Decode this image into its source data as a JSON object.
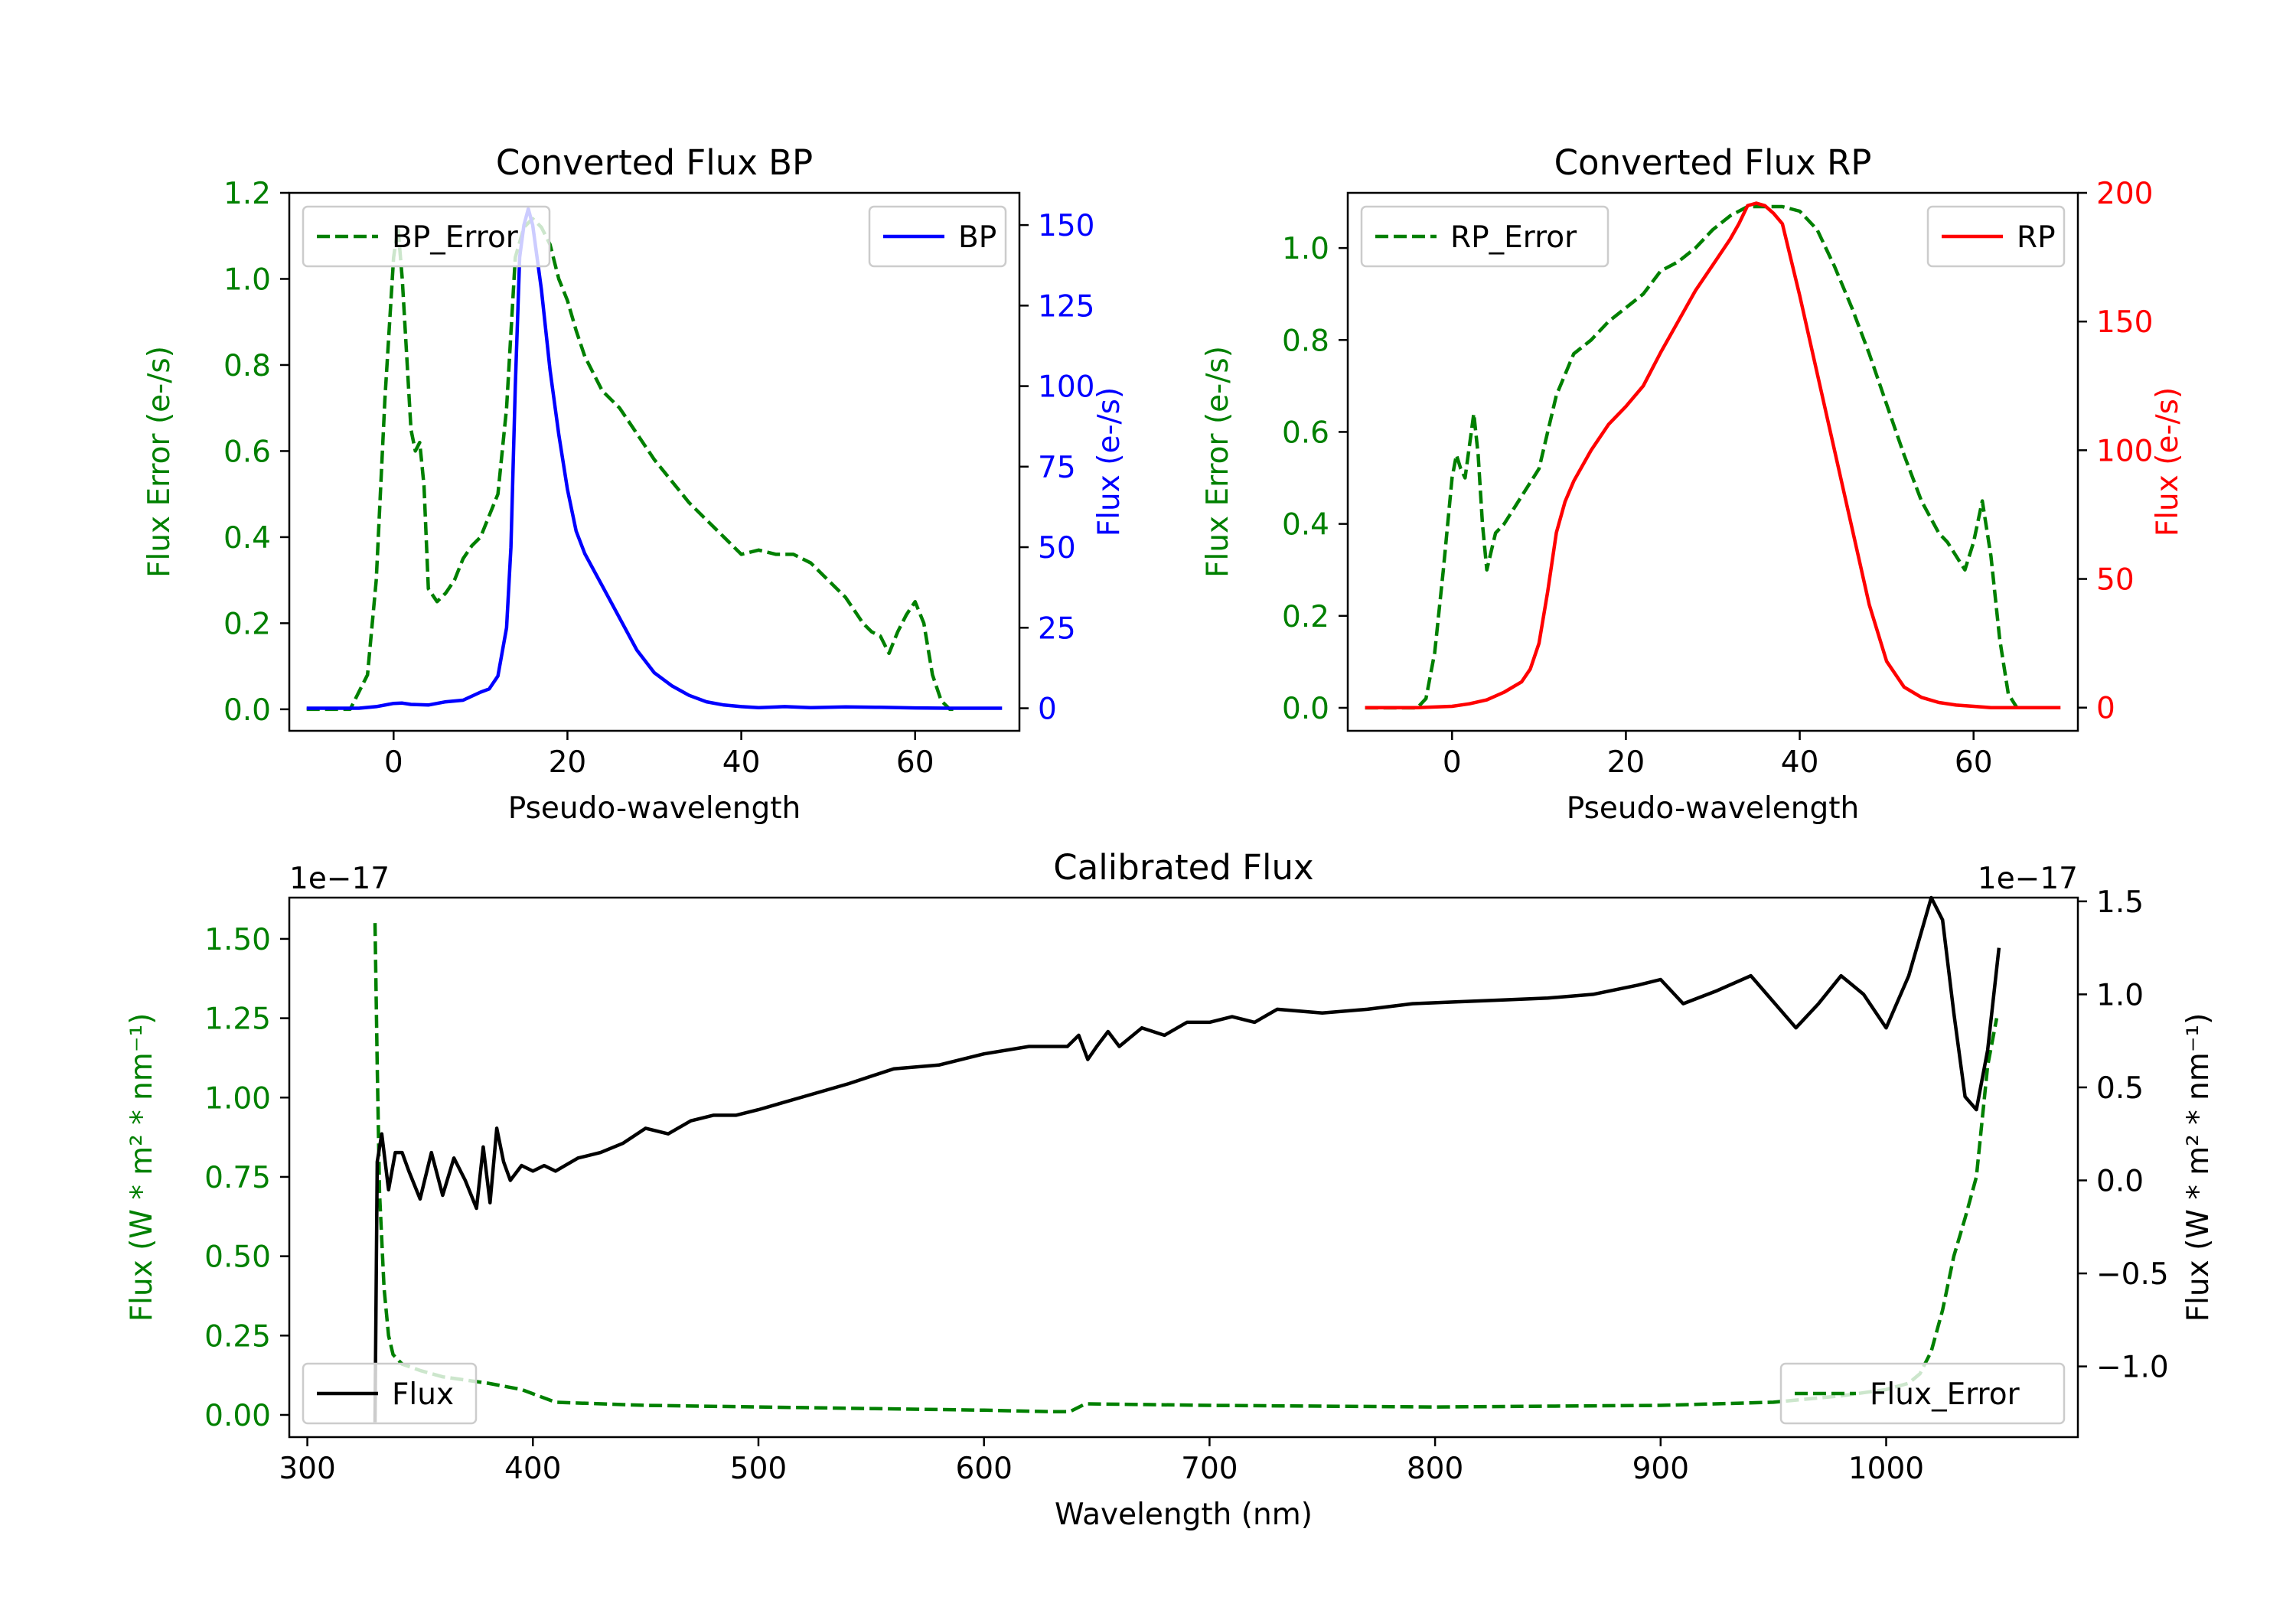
{
  "colors": {
    "green": "#008000",
    "blue": "#0000ff",
    "red": "#ff0000",
    "black": "#000000"
  },
  "chart_data": [
    {
      "type": "line",
      "title": "Converted Flux BP",
      "xlabel": "Pseudo-wavelength",
      "ylabel_left": "Flux Error (e-/s)",
      "ylabel_right": "Flux (e-/s)",
      "xlim": [
        -12.0,
        72.0
      ],
      "ylim_left": [
        -0.05,
        1.2
      ],
      "ylim_right": [
        -7.0,
        160.0
      ],
      "xticks": [
        0,
        20,
        40,
        60
      ],
      "yticks_left": [
        "0.0",
        "0.2",
        "0.4",
        "0.6",
        "0.8",
        "1.0",
        "1.2"
      ],
      "yticks_right": [
        "0",
        "25",
        "50",
        "75",
        "100",
        "125",
        "150"
      ],
      "legend_left": {
        "label": "BP_Error",
        "position": "upper-left"
      },
      "legend_right": {
        "label": "BP",
        "position": "upper-right"
      },
      "series": [
        {
          "name": "BP_Error",
          "axis": "left",
          "style": "dashed",
          "color": "#008000",
          "x": [
            -10,
            -5,
            -3,
            -2,
            -1,
            0,
            0.5,
            1,
            2,
            2.5,
            3,
            3.5,
            4,
            5,
            6,
            7,
            8,
            9,
            10,
            11,
            12,
            13,
            14,
            15,
            16,
            17,
            18,
            19,
            20,
            21,
            22,
            24,
            26,
            28,
            30,
            32,
            34,
            36,
            38,
            40,
            42,
            44,
            46,
            48,
            50,
            52,
            54,
            55,
            56,
            57,
            58,
            59,
            60,
            61,
            62,
            63,
            64,
            65
          ],
          "values": [
            0.0,
            0.0,
            0.08,
            0.3,
            0.72,
            1.05,
            1.12,
            1.0,
            0.65,
            0.6,
            0.62,
            0.52,
            0.28,
            0.25,
            0.27,
            0.3,
            0.35,
            0.38,
            0.4,
            0.45,
            0.5,
            0.7,
            1.05,
            1.12,
            1.14,
            1.12,
            1.08,
            1.0,
            0.95,
            0.88,
            0.82,
            0.74,
            0.7,
            0.64,
            0.58,
            0.53,
            0.48,
            0.44,
            0.4,
            0.36,
            0.37,
            0.36,
            0.36,
            0.34,
            0.3,
            0.26,
            0.2,
            0.18,
            0.17,
            0.13,
            0.18,
            0.22,
            0.25,
            0.2,
            0.08,
            0.02,
            0.0,
            0.0
          ]
        },
        {
          "name": "BP",
          "axis": "right",
          "style": "solid",
          "color": "#0000ff",
          "x": [
            -10,
            -4,
            -2,
            0,
            1,
            2,
            4,
            6,
            8,
            10,
            11,
            12,
            13,
            13.5,
            14,
            14.5,
            15,
            15.5,
            16,
            17,
            18,
            19,
            20,
            21,
            22,
            24,
            26,
            28,
            30,
            32,
            34,
            36,
            38,
            40,
            42,
            45,
            48,
            52,
            56,
            60,
            64,
            70
          ],
          "values": [
            0,
            0,
            0.5,
            1.5,
            1.6,
            1.2,
            1.0,
            2.0,
            2.5,
            5,
            6,
            10,
            25,
            50,
            100,
            140,
            150,
            155,
            150,
            130,
            105,
            85,
            68,
            55,
            48,
            38,
            28,
            18,
            11,
            7,
            4,
            2,
            1,
            0.5,
            0.2,
            0.5,
            0.2,
            0.4,
            0.3,
            0.1,
            0,
            0
          ]
        }
      ]
    },
    {
      "type": "line",
      "title": "Converted Flux RP",
      "xlabel": "Pseudo-wavelength",
      "ylabel_left": "Flux Error (e-/s)",
      "ylabel_right": "Flux (e-/s)",
      "xlim": [
        -12.0,
        72.0
      ],
      "ylim_left": [
        -0.05,
        1.12
      ],
      "ylim_right": [
        -9.0,
        200.0
      ],
      "xticks": [
        0,
        20,
        40,
        60
      ],
      "yticks_left": [
        "0.0",
        "0.2",
        "0.4",
        "0.6",
        "0.8",
        "1.0"
      ],
      "yticks_right": [
        "0",
        "50",
        "100",
        "150",
        "200"
      ],
      "legend_left": {
        "label": "RP_Error",
        "position": "upper-left"
      },
      "legend_right": {
        "label": "RP",
        "position": "upper-right"
      },
      "series": [
        {
          "name": "RP_Error",
          "axis": "left",
          "style": "dashed",
          "color": "#008000",
          "x": [
            -10,
            -4,
            -3,
            -2,
            -1,
            0,
            0.5,
            1,
            1.5,
            2,
            2.5,
            3,
            3.5,
            4,
            5,
            6,
            8,
            10,
            12,
            14,
            16,
            18,
            20,
            22,
            24,
            26,
            28,
            30,
            32,
            34,
            36,
            38,
            40,
            42,
            44,
            46,
            48,
            50,
            52,
            54,
            56,
            57,
            58,
            59,
            60,
            61,
            62,
            63,
            64,
            65
          ],
          "values": [
            0.0,
            0.0,
            0.02,
            0.12,
            0.3,
            0.5,
            0.55,
            0.52,
            0.5,
            0.57,
            0.64,
            0.55,
            0.4,
            0.3,
            0.38,
            0.4,
            0.46,
            0.52,
            0.68,
            0.77,
            0.8,
            0.84,
            0.87,
            0.9,
            0.95,
            0.97,
            1.0,
            1.04,
            1.07,
            1.09,
            1.09,
            1.09,
            1.08,
            1.04,
            0.96,
            0.87,
            0.77,
            0.66,
            0.55,
            0.45,
            0.38,
            0.36,
            0.33,
            0.3,
            0.36,
            0.45,
            0.33,
            0.15,
            0.03,
            0.0
          ]
        },
        {
          "name": "RP",
          "axis": "right",
          "style": "solid",
          "color": "#ff0000",
          "x": [
            -10,
            -4,
            0,
            2,
            4,
            6,
            8,
            9,
            10,
            11,
            12,
            13,
            14,
            16,
            18,
            20,
            22,
            24,
            26,
            28,
            30,
            32,
            33,
            34,
            35,
            36,
            37,
            38,
            40,
            42,
            44,
            46,
            48,
            50,
            52,
            54,
            56,
            58,
            60,
            62,
            64,
            70
          ],
          "values": [
            0,
            0,
            0.5,
            1.5,
            3,
            6,
            10,
            15,
            25,
            45,
            68,
            80,
            88,
            100,
            110,
            117,
            125,
            138,
            150,
            162,
            172,
            182,
            188,
            195,
            196,
            195,
            192,
            188,
            160,
            130,
            100,
            70,
            40,
            18,
            8,
            4,
            2,
            1,
            0.5,
            0,
            0,
            0
          ]
        }
      ]
    },
    {
      "type": "line",
      "title": "Calibrated Flux",
      "xlabel": "Wavelength (nm)",
      "ylabel_left": "Flux (W * m² * nm⁻¹)",
      "ylabel_right": "Flux (W * m² * nm⁻¹)",
      "offset_left": "1e−17",
      "offset_right": "1e−17",
      "xlim": [
        292.0,
        1085.0
      ],
      "ylim_left": [
        -0.07,
        1.63
      ],
      "ylim_right": [
        -1.38,
        1.52
      ],
      "xticks": [
        300,
        400,
        500,
        600,
        700,
        800,
        900,
        1000
      ],
      "yticks_left": [
        "0.00",
        "0.25",
        "0.50",
        "0.75",
        "1.00",
        "1.25",
        "1.50"
      ],
      "yticks_right": [
        "−1.0",
        "−0.5",
        "0.0",
        "0.5",
        "1.0",
        "1.5"
      ],
      "legend_left": {
        "label": "Flux",
        "position": "lower-left"
      },
      "legend_right": {
        "label": "Flux_Error",
        "position": "lower-right"
      },
      "series": [
        {
          "name": "Flux_Error",
          "axis": "left",
          "style": "dashed",
          "color": "#008000",
          "x": [
            330,
            331,
            332,
            334,
            336,
            338,
            342,
            350,
            360,
            380,
            395,
            410,
            450,
            500,
            550,
            600,
            630,
            638,
            645,
            700,
            800,
            900,
            950,
            980,
            1000,
            1010,
            1015,
            1020,
            1025,
            1030,
            1035,
            1040,
            1045,
            1049
          ],
          "values": [
            1.55,
            1.1,
            0.7,
            0.4,
            0.25,
            0.19,
            0.16,
            0.14,
            0.12,
            0.1,
            0.08,
            0.04,
            0.03,
            0.025,
            0.02,
            0.015,
            0.01,
            0.01,
            0.035,
            0.03,
            0.025,
            0.03,
            0.04,
            0.06,
            0.08,
            0.1,
            0.13,
            0.2,
            0.33,
            0.5,
            0.62,
            0.75,
            1.1,
            1.25
          ]
        },
        {
          "name": "Flux",
          "axis": "right",
          "style": "solid",
          "color": "#000000",
          "x": [
            330,
            331,
            333,
            336,
            339,
            342,
            345,
            350,
            355,
            360,
            365,
            370,
            375,
            378,
            381,
            384,
            387,
            390,
            395,
            400,
            405,
            410,
            420,
            430,
            440,
            450,
            460,
            470,
            480,
            490,
            500,
            520,
            540,
            560,
            580,
            600,
            620,
            637,
            642,
            646,
            650,
            655,
            660,
            670,
            680,
            690,
            700,
            710,
            720,
            730,
            750,
            770,
            790,
            810,
            830,
            850,
            870,
            890,
            900,
            910,
            925,
            940,
            960,
            970,
            980,
            990,
            1000,
            1010,
            1020,
            1025,
            1030,
            1035,
            1040,
            1045,
            1050
          ],
          "values": [
            -1.3,
            0.1,
            0.25,
            -0.05,
            0.15,
            0.15,
            0.05,
            -0.1,
            0.15,
            -0.08,
            0.12,
            0.0,
            -0.15,
            0.18,
            -0.12,
            0.28,
            0.1,
            0.0,
            0.08,
            0.05,
            0.08,
            0.05,
            0.12,
            0.15,
            0.2,
            0.28,
            0.25,
            0.32,
            0.35,
            0.35,
            0.38,
            0.45,
            0.52,
            0.6,
            0.62,
            0.68,
            0.72,
            0.72,
            0.78,
            0.65,
            0.72,
            0.8,
            0.72,
            0.82,
            0.78,
            0.85,
            0.85,
            0.88,
            0.85,
            0.92,
            0.9,
            0.92,
            0.95,
            0.96,
            0.97,
            0.98,
            1.0,
            1.05,
            1.08,
            0.95,
            1.02,
            1.1,
            0.82,
            0.95,
            1.1,
            1.0,
            0.82,
            1.1,
            1.52,
            1.4,
            0.9,
            0.45,
            0.38,
            0.7,
            1.25
          ]
        }
      ]
    }
  ]
}
